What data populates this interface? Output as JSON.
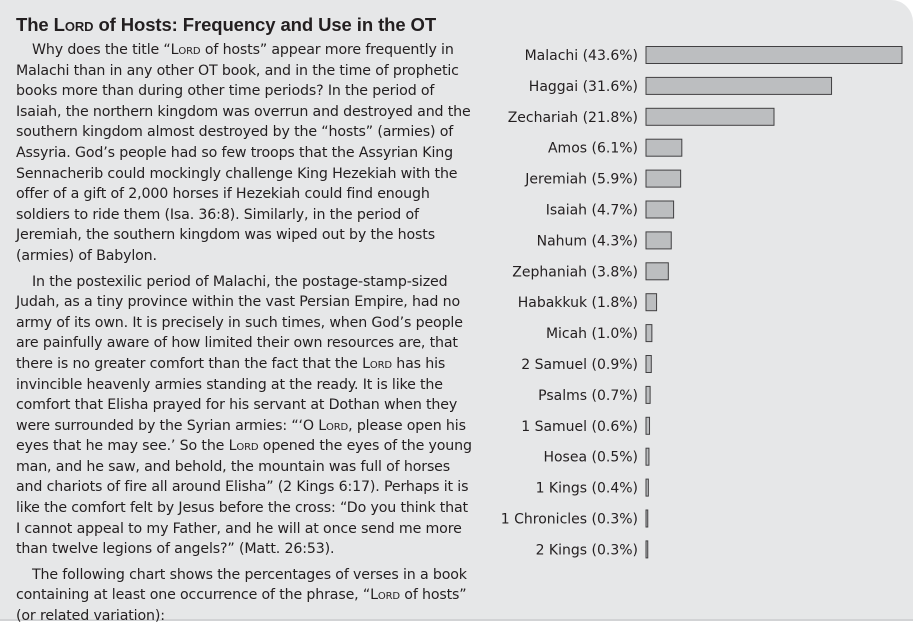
{
  "heading": {
    "pre": "The ",
    "lord": "Lord",
    "post": " of Hosts: Frequency and Use in the OT"
  },
  "article": {
    "p1": "Why does the title “Lord of hosts” appear more frequently in Malachi than in any other OT book, and in the time of prophetic books more than during other time periods? In the period of Isaiah, the northern kingdom was overrun and destroyed and the southern kingdom almost destroyed by the “hosts” (armies) of Assyria. God’s people had so few troops that the Assyrian King Sennacherib could mockingly challenge King Hezekiah with the offer of a gift of 2,000 horses if Hezekiah could find enough soldiers to ride them (Isa. 36:8). Similarly, in the period of Jeremiah, the southern kingdom was wiped out by the hosts (armies) of Babylon.",
    "p2": "In the postexilic period of Malachi, the postage-stamp-sized Judah, as a tiny province within the vast Persian Empire, had no army of its own. It is precisely in such times, when God’s people are painfully aware of how limited their own resources are, that there is no greater comfort than the fact that the Lord has his invincible heavenly armies standing at the ready. It is like the comfort that Elisha prayed for his servant at Dothan when they were surrounded by the Syrian armies: “‘O Lord, please open his eyes that he may see.’ So the Lord opened the eyes of the young man, and he saw, and behold, the mountain was full of horses and chariots of fire all around Elisha” (2 Kings 6:17). Perhaps it is like the comfort felt by Jesus before the cross: “Do you think that I cannot appeal to my Father, and he will at once send me more than twelve legions of angels?” (Matt. 26:53).",
    "p3": "The following chart shows the percentages of verses in a book containing at least one occurrence of the phrase, “Lord of hosts” (or related variation):"
  },
  "colors": {
    "panel_background": "#e6e7e8",
    "bar_fill": "#bcbec0",
    "bar_stroke": "#414042",
    "text": "#231f20"
  },
  "chart_data": {
    "type": "bar",
    "orientation": "horizontal",
    "title": "",
    "xlabel": "",
    "ylabel": "",
    "unit": "%",
    "xlim": [
      0,
      43.6
    ],
    "grid": false,
    "categories": [
      "Malachi",
      "Haggai",
      "Zechariah",
      "Amos",
      "Jeremiah",
      "Isaiah",
      "Nahum",
      "Zephaniah",
      "Habakkuk",
      "Micah",
      "2 Samuel",
      "Psalms",
      "1 Samuel",
      "Hosea",
      "1 Kings",
      "1 Chronicles",
      "2 Kings"
    ],
    "values": [
      43.6,
      31.6,
      21.8,
      6.1,
      5.9,
      4.7,
      4.3,
      3.8,
      1.8,
      1.0,
      0.9,
      0.7,
      0.6,
      0.5,
      0.4,
      0.3,
      0.3
    ],
    "labels": [
      "Malachi (43.6%)",
      "Haggai (31.6%)",
      "Zechariah (21.8%)",
      "Amos (6.1%)",
      "Jeremiah (5.9%)",
      "Isaiah (4.7%)",
      "Nahum (4.3%)",
      "Zephaniah (3.8%)",
      "Habakkuk (1.8%)",
      "Micah (1.0%)",
      "2 Samuel (0.9%)",
      "Psalms (0.7%)",
      "1 Samuel (0.6%)",
      "Hosea (0.5%)",
      "1 Kings (0.4%)",
      "1 Chronicles (0.3%)",
      "2 Kings (0.3%)"
    ]
  }
}
